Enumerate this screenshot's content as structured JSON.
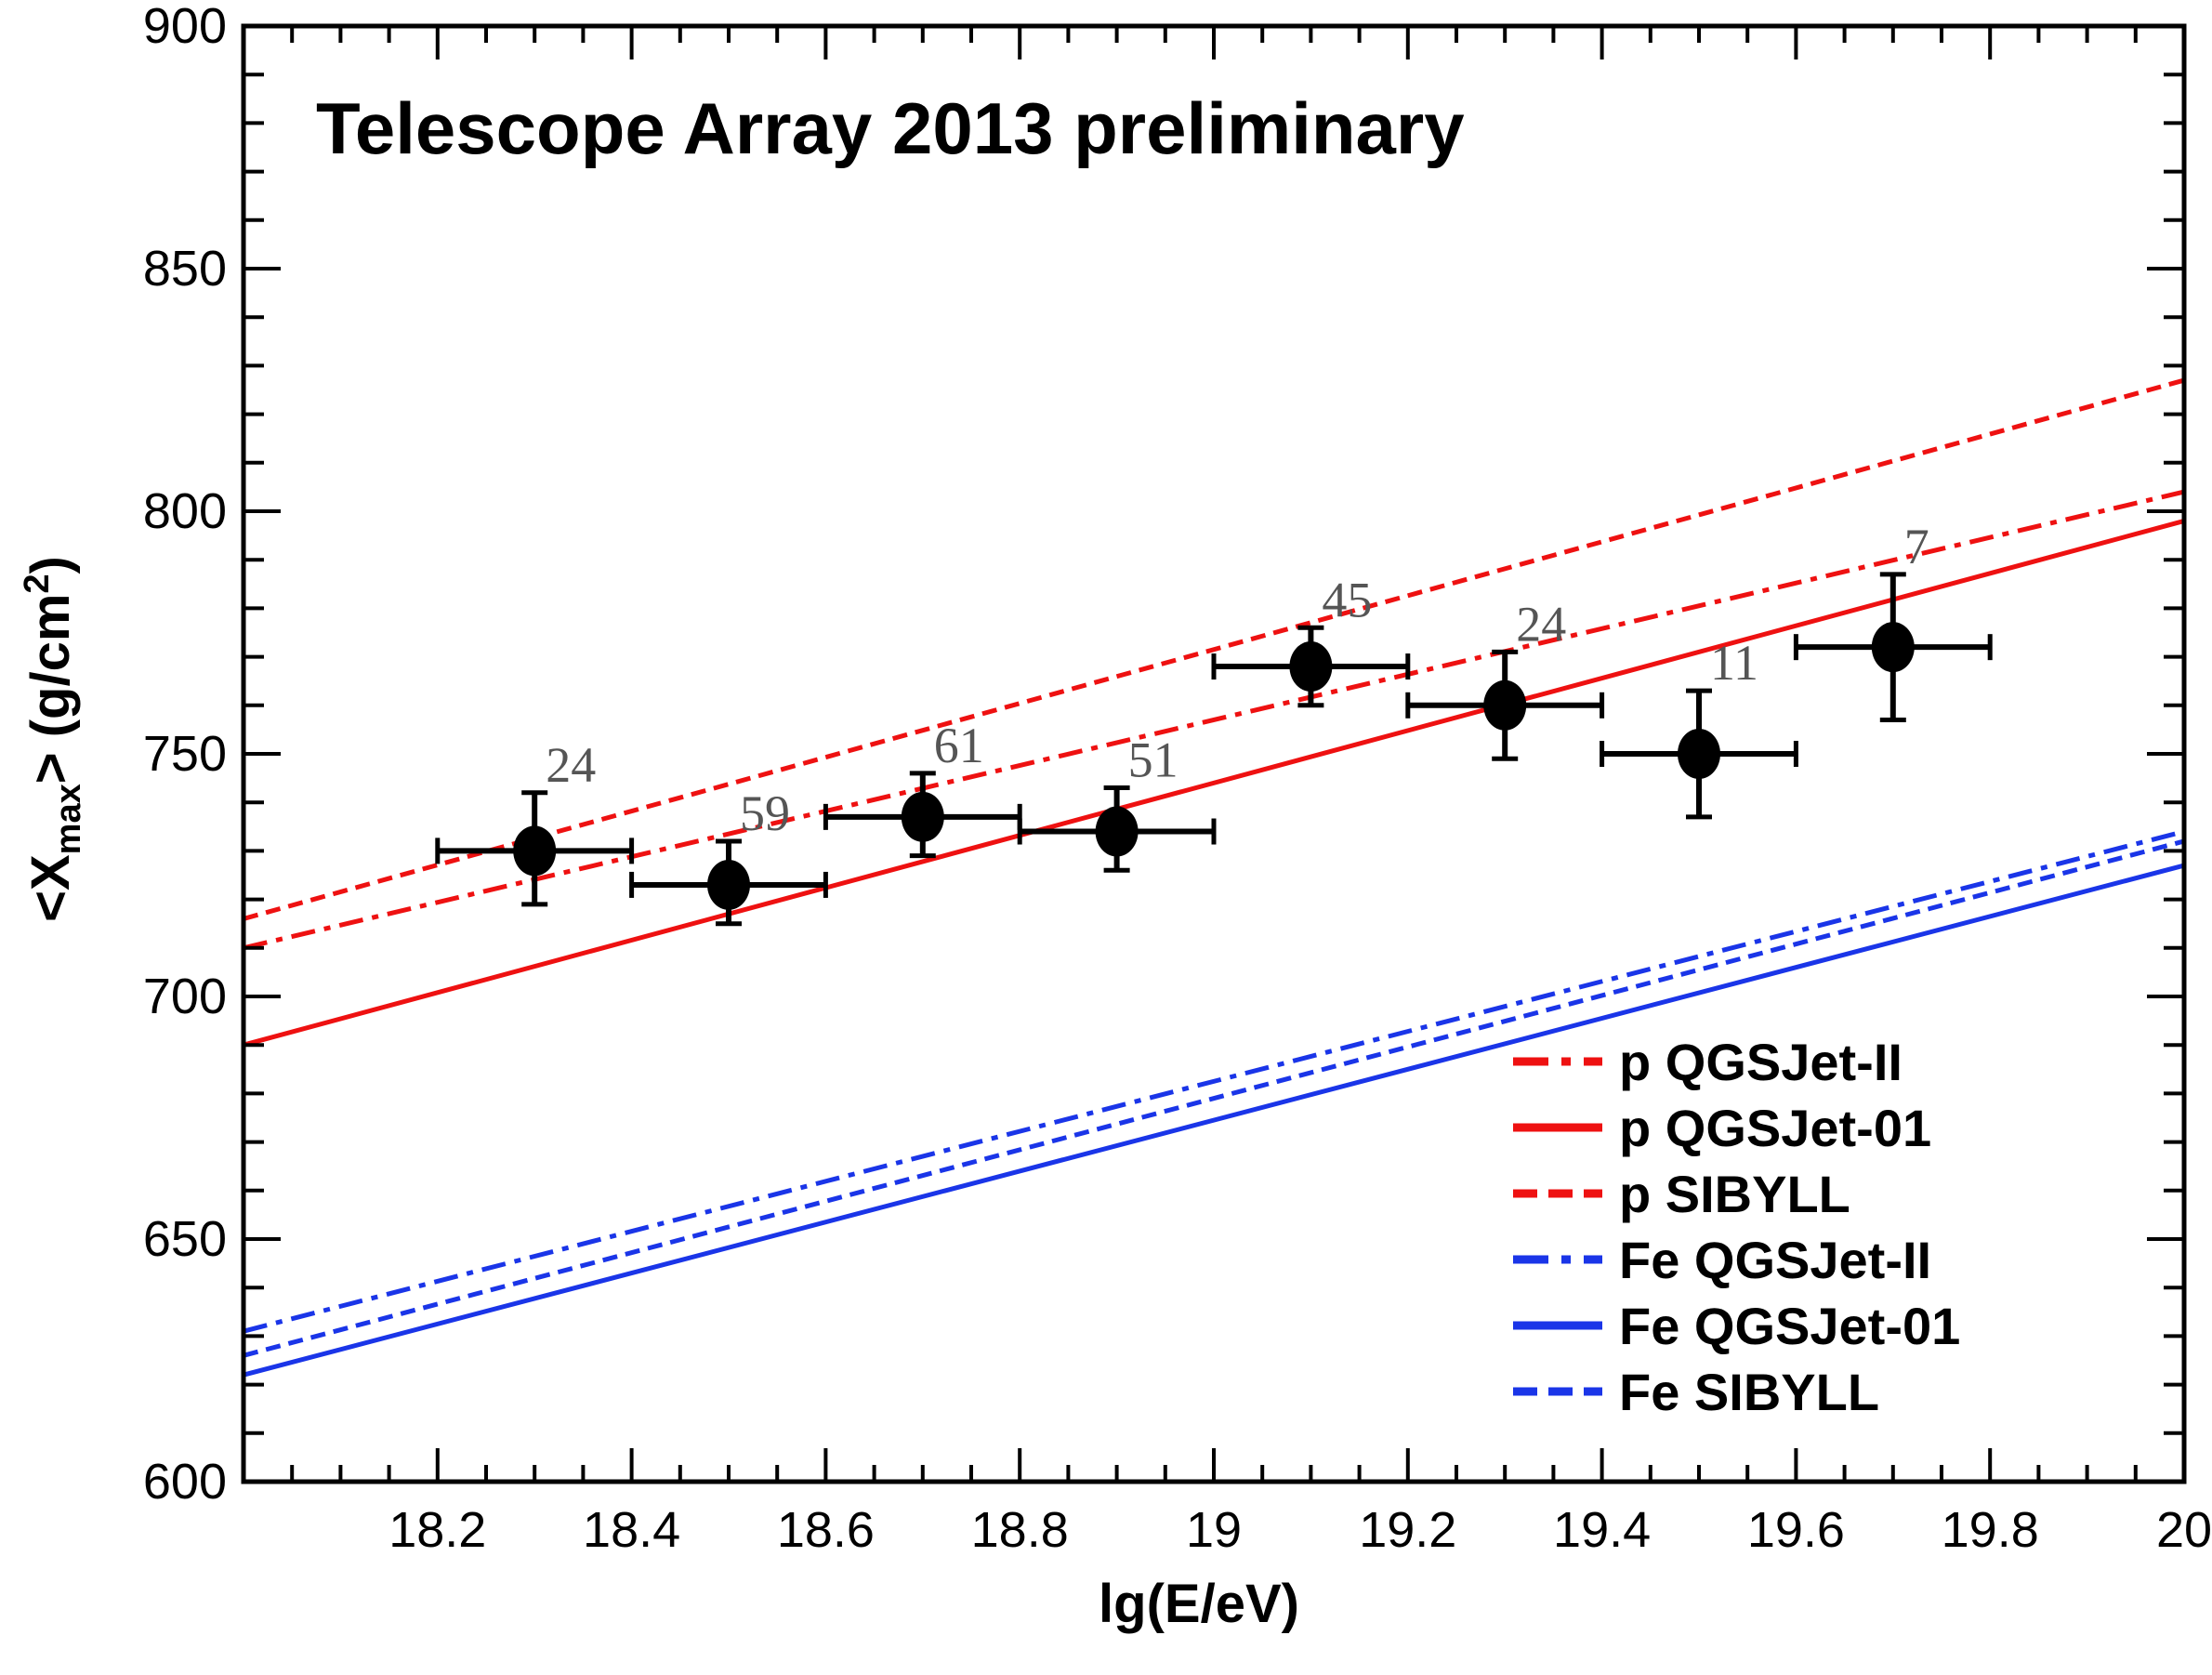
{
  "chart_data": {
    "type": "scatter",
    "title": "Telescope Array 2013 preliminary",
    "xlabel": "lg(E/eV)",
    "ylabel": "<Xmax> (g/cm²)",
    "ylabel_parts": {
      "open": "<X",
      "sub": "max",
      "mid": "> (g/cm",
      "sup": "2",
      "close": ")"
    },
    "xlim": [
      18.0,
      20.0
    ],
    "ylim": [
      600,
      900
    ],
    "x_ticks": [
      18.2,
      18.4,
      18.6,
      18.8,
      19,
      19.2,
      19.4,
      19.6,
      19.8,
      20
    ],
    "x_tick_labels": [
      "18.2",
      "18.4",
      "18.6",
      "18.8",
      "19",
      "19.2",
      "19.4",
      "19.6",
      "19.8",
      "20"
    ],
    "y_ticks": [
      600,
      650,
      700,
      750,
      800,
      850,
      900
    ],
    "y_tick_labels": [
      "600",
      "650",
      "700",
      "750",
      "800",
      "850",
      "900"
    ],
    "grid": false,
    "legend_position": "bottom-right",
    "data_points": {
      "name": "Telescope Array data",
      "color": "#000000",
      "points": [
        {
          "x": 18.3,
          "y": 730,
          "x_err": 0.1,
          "y_err_low": 11,
          "y_err_high": 12,
          "label": "24"
        },
        {
          "x": 18.5,
          "y": 723,
          "x_err": 0.1,
          "y_err_low": 8,
          "y_err_high": 9,
          "label": "59"
        },
        {
          "x": 18.7,
          "y": 737,
          "x_err": 0.1,
          "y_err_low": 8,
          "y_err_high": 9,
          "label": "61"
        },
        {
          "x": 18.9,
          "y": 734,
          "x_err": 0.1,
          "y_err_low": 8,
          "y_err_high": 9,
          "label": "51"
        },
        {
          "x": 19.1,
          "y": 768,
          "x_err": 0.1,
          "y_err_low": 8,
          "y_err_high": 8,
          "label": "45"
        },
        {
          "x": 19.3,
          "y": 760,
          "x_err": 0.1,
          "y_err_low": 11,
          "y_err_high": 11,
          "label": "24"
        },
        {
          "x": 19.5,
          "y": 750,
          "x_err": 0.1,
          "y_err_low": 13,
          "y_err_high": 13,
          "label": "11"
        },
        {
          "x": 19.7,
          "y": 772,
          "x_err": 0.1,
          "y_err_low": 15,
          "y_err_high": 15,
          "label": "7"
        }
      ]
    },
    "series": [
      {
        "name": "p QGSJet-II",
        "color": "#ee1111",
        "style": "dashdot",
        "x": [
          18.0,
          20.0
        ],
        "y": [
          710,
          804
        ]
      },
      {
        "name": "p QGSJet-01",
        "color": "#ee1111",
        "style": "solid",
        "x": [
          18.0,
          20.0
        ],
        "y": [
          690,
          798
        ]
      },
      {
        "name": "p SIBYLL",
        "color": "#ee1111",
        "style": "dotted",
        "x": [
          18.0,
          20.0
        ],
        "y": [
          716,
          827
        ]
      },
      {
        "name": "Fe QGSJet-II",
        "color": "#1a35e8",
        "style": "dashdot",
        "x": [
          18.0,
          20.0
        ],
        "y": [
          631,
          734
        ]
      },
      {
        "name": "Fe QGSJet-01",
        "color": "#1a35e8",
        "style": "solid",
        "x": [
          18.0,
          20.0
        ],
        "y": [
          622,
          727
        ]
      },
      {
        "name": "Fe SIBYLL",
        "color": "#1a35e8",
        "style": "dotted",
        "x": [
          18.0,
          20.0
        ],
        "y": [
          626,
          732
        ]
      }
    ]
  }
}
